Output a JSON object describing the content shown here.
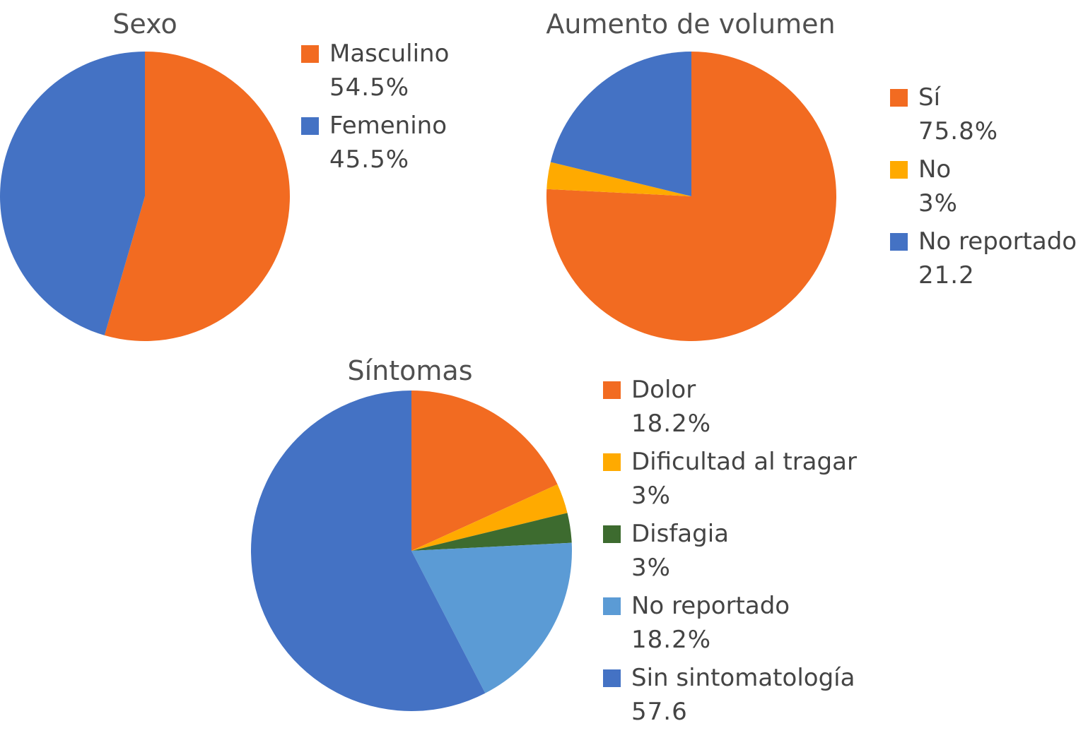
{
  "chart_data": [
    {
      "type": "pie",
      "title": "Sexo",
      "slices": [
        {
          "label": "Masculino",
          "display": "54.5%",
          "value": 54.5,
          "color": "#F26B21"
        },
        {
          "label": "Femenino",
          "display": "45.5%",
          "value": 45.5,
          "color": "#4472C4"
        }
      ],
      "legend_position": "right"
    },
    {
      "type": "pie",
      "title": "Aumento de volumen",
      "slices": [
        {
          "label": "Sí",
          "display": "75.8%",
          "value": 75.8,
          "color": "#F26B21"
        },
        {
          "label": "No",
          "display": "3%",
          "value": 3,
          "color": "#FFAA00"
        },
        {
          "label": "No reportado",
          "display": "21.2",
          "value": 21.2,
          "color": "#4472C4"
        }
      ],
      "legend_position": "right"
    },
    {
      "type": "pie",
      "title": "Síntomas",
      "slices": [
        {
          "label": "Dolor",
          "display": "18.2%",
          "value": 18.2,
          "color": "#F26B21"
        },
        {
          "label": "Dificultad al tragar",
          "display": "3%",
          "value": 3,
          "color": "#FFAA00"
        },
        {
          "label": "Disfagia",
          "display": "3%",
          "value": 3,
          "color": "#3D6B2F"
        },
        {
          "label": "No reportado",
          "display": "18.2%",
          "value": 18.2,
          "color": "#5B9BD5"
        },
        {
          "label": "Sin sintomatología",
          "display": "57.6",
          "value": 57.6,
          "color": "#4472C4"
        }
      ],
      "legend_position": "right"
    }
  ]
}
